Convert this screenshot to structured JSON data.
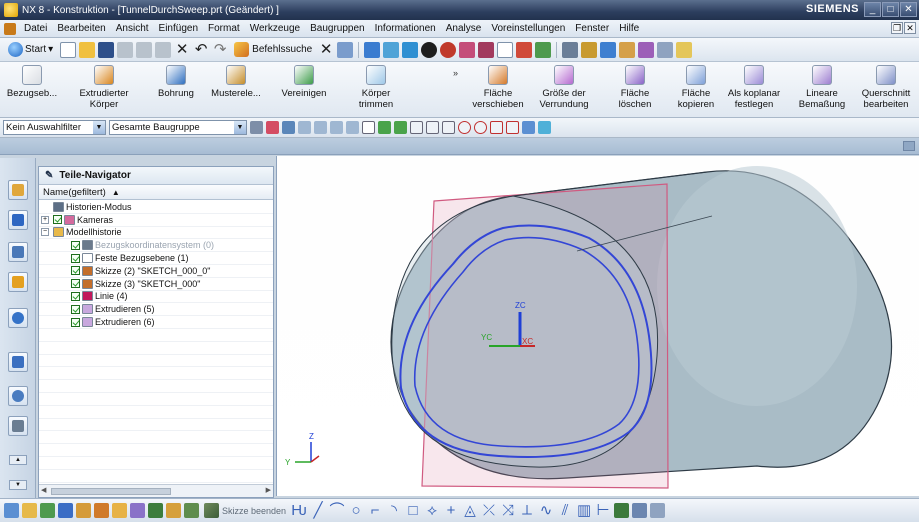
{
  "window": {
    "title": "NX 8 - Konstruktion - [TunnelDurchSweep.prt (Geändert) ]",
    "brand": "SIEMENS",
    "controls": [
      "_",
      "□",
      "✕"
    ]
  },
  "menubar": {
    "items": [
      "Datei",
      "Bearbeiten",
      "Ansicht",
      "Einfügen",
      "Format",
      "Werkzeuge",
      "Baugruppen",
      "Informationen",
      "Analyse",
      "Voreinstellungen",
      "Fenster",
      "Hilfe"
    ]
  },
  "standard_toolbar": {
    "start_label": "Start",
    "command_finder_label": "Befehlssuche"
  },
  "ribbon": {
    "buttons": [
      {
        "label1": "Bezugseb...",
        "label2": "",
        "icon": "datum-plane-icon",
        "color": "#d9dde3"
      },
      {
        "label1": "Extrudierter",
        "label2": "Körper",
        "icon": "extrude-icon",
        "color": "#d9861f"
      },
      {
        "label1": "Bohrung",
        "label2": "",
        "icon": "hole-icon",
        "color": "#2f6fc0"
      },
      {
        "label1": "Musterele...",
        "label2": "",
        "icon": "pattern-icon",
        "color": "#c58d2a"
      },
      {
        "label1": "Vereinigen",
        "label2": "",
        "icon": "unite-icon",
        "color": "#3d9c4a"
      },
      {
        "label1": "Körper",
        "label2": "trimmen",
        "icon": "trim-body-icon",
        "color": "#9fc8e8"
      },
      {
        "label1": "Fläche",
        "label2": "verschieben",
        "icon": "move-face-icon",
        "color": "#d57a2a"
      },
      {
        "label1": "Größe der",
        "label2": "Verrundung",
        "icon": "resize-blend-icon",
        "color": "#b56ad0"
      },
      {
        "label1": "Fläche",
        "label2": "löschen",
        "icon": "delete-face-icon",
        "color": "#8a64c8"
      },
      {
        "label1": "Fläche",
        "label2": "kopieren",
        "icon": "copy-face-icon",
        "color": "#7ea0d8"
      },
      {
        "label1": "Als koplanar",
        "label2": "festlegen",
        "icon": "coplanar-icon",
        "color": "#9b8bd6"
      },
      {
        "label1": "Lineare",
        "label2": "Bemaßung",
        "icon": "linear-dimension-icon",
        "color": "#9d7ed0"
      },
      {
        "label1": "Querschnitt",
        "label2": "bearbeiten",
        "icon": "section-edit-icon",
        "color": "#7f90c8"
      }
    ]
  },
  "selection_bar": {
    "type_filter": "Kein Auswahlfilter",
    "scope": "Gesamte Baugruppe"
  },
  "navigator": {
    "title": "Teile-Navigator",
    "column_header": "Name(gefiltert)",
    "sort_indicator": "▲",
    "rows": [
      {
        "text": "Historien-Modus",
        "indent": 1,
        "checked": false,
        "dim": false,
        "expander": "",
        "icon": "clock-icon",
        "iconColor": "#5d6f86"
      },
      {
        "text": "Kameras",
        "indent": 1,
        "checked": true,
        "dim": false,
        "expander": "+",
        "icon": "camera-icon",
        "iconColor": "#d46a9d"
      },
      {
        "text": "Modellhistorie",
        "indent": 1,
        "checked": false,
        "dim": false,
        "expander": "−",
        "icon": "folder-icon",
        "iconColor": "#e8b94a"
      },
      {
        "text": "Bezugskoordinatensystem (0)",
        "indent": 2,
        "checked": true,
        "dim": true,
        "expander": "",
        "icon": "csys-icon",
        "iconColor": "#6b7a8c"
      },
      {
        "text": "Feste Bezugsebene (1)",
        "indent": 2,
        "checked": true,
        "dim": false,
        "expander": "",
        "icon": "datum-plane-icon",
        "iconColor": "#ffffff"
      },
      {
        "text": "Skizze (2) \"SKETCH_000_0\"",
        "indent": 2,
        "checked": true,
        "dim": false,
        "expander": "",
        "icon": "sketch-icon",
        "iconColor": "#c36e2b"
      },
      {
        "text": "Skizze (3) \"SKETCH_000\"",
        "indent": 2,
        "checked": true,
        "dim": false,
        "expander": "",
        "icon": "sketch-icon",
        "iconColor": "#c36e2b"
      },
      {
        "text": "Linie (4)",
        "indent": 2,
        "checked": true,
        "dim": false,
        "expander": "",
        "icon": "line-icon",
        "iconColor": "#c2185b"
      },
      {
        "text": "Extrudieren (5)",
        "indent": 2,
        "checked": true,
        "dim": false,
        "expander": "",
        "icon": "extrude-icon",
        "iconColor": "#c8a7de"
      },
      {
        "text": "Extrudieren (6)",
        "indent": 2,
        "checked": true,
        "dim": false,
        "expander": "",
        "icon": "extrude-icon",
        "iconColor": "#c8a7de"
      }
    ]
  },
  "viewport": {
    "wcs_labels": {
      "zc": "ZC",
      "yc": "YC",
      "xc": "XC"
    },
    "triad_labels": {
      "z": "Z",
      "y": "Y"
    }
  },
  "bottom_toolbar": {
    "finish_sketch_label": "Skizze beenden"
  },
  "colors": {
    "title_bar": "#2c3e5e",
    "cylinder_body": "#a9bcc6",
    "sketch_curve": "#3346d6",
    "datum_plane": "#d87a9a",
    "wcs_z": "#1f3fd6",
    "wcs_y": "#28a428",
    "wcs_x": "#c62828"
  }
}
